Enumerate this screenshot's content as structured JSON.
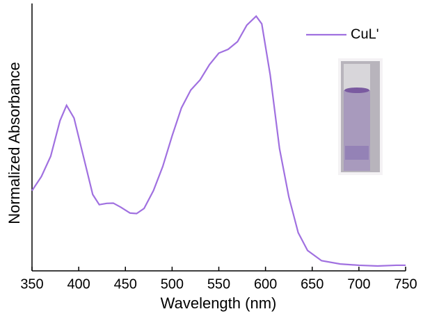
{
  "chart_data": {
    "type": "line",
    "xlabel": "Wavelength (nm)",
    "ylabel": "Normalized Absorbance",
    "xlim": [
      350,
      750
    ],
    "ylim": [
      0,
      1.05
    ],
    "xticks": [
      350,
      400,
      450,
      500,
      550,
      600,
      650,
      700,
      750
    ],
    "legend": "top-right",
    "series": [
      {
        "name": "CuL'",
        "color": "#a070e0",
        "x": [
          350,
          360,
          370,
          380,
          387,
          395,
          405,
          415,
          422,
          430,
          437,
          445,
          455,
          462,
          470,
          480,
          490,
          500,
          510,
          520,
          530,
          540,
          550,
          560,
          570,
          580,
          590,
          596,
          605,
          615,
          625,
          635,
          645,
          660,
          680,
          700,
          720,
          740,
          750
        ],
        "values": [
          0.315,
          0.37,
          0.45,
          0.59,
          0.65,
          0.6,
          0.45,
          0.3,
          0.26,
          0.265,
          0.266,
          0.25,
          0.227,
          0.225,
          0.245,
          0.315,
          0.41,
          0.53,
          0.64,
          0.71,
          0.75,
          0.81,
          0.855,
          0.87,
          0.9,
          0.965,
          1.0,
          0.97,
          0.77,
          0.48,
          0.29,
          0.15,
          0.08,
          0.04,
          0.027,
          0.022,
          0.019,
          0.022,
          0.022
        ]
      }
    ]
  }
}
